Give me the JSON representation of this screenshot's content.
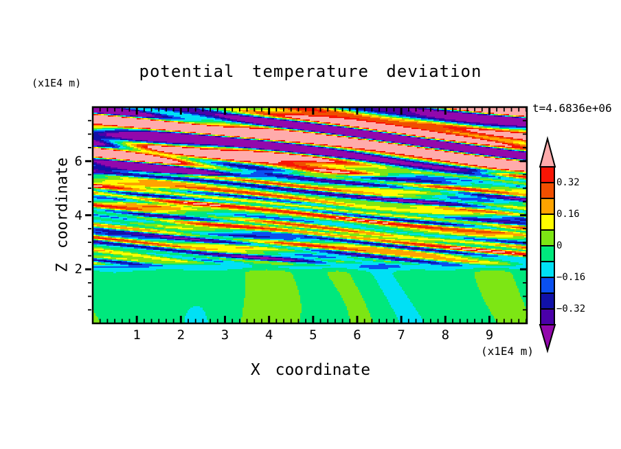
{
  "title": "potential temperature deviation",
  "timestamp_label": "t=4.6836e+06",
  "axes": {
    "x_label": "X coordinate",
    "x_unit": "(x1E4 m)",
    "z_label": "Z coordinate",
    "z_unit": "(x1E4 m)",
    "x_ticks": [
      1,
      2,
      3,
      4,
      5,
      6,
      7,
      8,
      9
    ],
    "z_ticks": [
      2,
      4,
      6
    ],
    "x_range": [
      0,
      9.85
    ],
    "z_range": [
      0,
      8
    ],
    "x_minor_per_major": 6,
    "z_minor_step": 0.5
  },
  "colorbar": {
    "labels": [
      {
        "text": "0.32",
        "boundary": 1
      },
      {
        "text": "0.16",
        "boundary": 3
      },
      {
        "text": "0",
        "boundary": 5
      },
      {
        "text": "−0.16",
        "boundary": 7
      },
      {
        "text": "−0.32",
        "boundary": 9
      }
    ],
    "segment_values_top_to_bottom": [
      "0.32 to 0.40",
      "0.24 to 0.32",
      "0.16 to 0.24",
      "0.08 to 0.16",
      "0 to 0.08",
      "-0.08 to 0",
      "-0.16 to -0.08",
      "-0.24 to -0.16",
      "-0.32 to -0.24",
      "-0.40 to -0.32"
    ],
    "above_range": "> 0.40",
    "below_range": "< -0.40"
  },
  "chart_data": {
    "type": "filled_contour",
    "title": "potential temperature deviation",
    "xlabel": "X coordinate (x1E4 m)",
    "ylabel": "Z coordinate (x1E4 m)",
    "time": "t=4.6836e+06",
    "x_range": [
      0,
      9.85
    ],
    "z_range": [
      0,
      8
    ],
    "levels": [
      -0.4,
      -0.32,
      -0.24,
      -0.16,
      -0.08,
      0,
      0.08,
      0.16,
      0.24,
      0.32,
      0.4
    ],
    "palette_low_to_high": [
      "#9208AC",
      "#4A00A8",
      "#1111A8",
      "#0A50F0",
      "#00E0F5",
      "#00E87D",
      "#7DE614",
      "#FFFC00",
      "#FFA300",
      "#F04E00",
      "#F81505",
      "#FFABAB"
    ],
    "structure_notes": "bottom layer z<2: near-zero deviation (green); middle 2<z<5.4: fine alternating filaments up to ±0.45; top z>5.4: large-amplitude saturated bands beyond ±0.40 (pink/purple)",
    "field_model": {
      "layers": [
        {
          "name": "bottom",
          "zmin": -2,
          "zmax": 2.15,
          "feather": 0.28,
          "offset": -0.03,
          "terms": [
            {
              "a": 0.042,
              "kx": 1.6,
              "kz": 0.55,
              "ph": 0.3,
              "ma": 1.6,
              "mkx": 0.45,
              "mkz": 0.25,
              "mph": 1.0
            },
            {
              "a": 0.032,
              "kx": 3.1,
              "kz": 0.5,
              "ph": 2.2,
              "ma": 1.2,
              "mkx": 0.7,
              "mkz": 0.9,
              "mph": 0.4
            }
          ]
        },
        {
          "name": "middle",
          "zmin": 2.05,
          "zmax": 5.45,
          "feather": 0.3,
          "offset": 0.0,
          "terms": [
            {
              "a": 0.17,
              "kx": 1.1,
              "kz": 10.0,
              "ph": 0.5,
              "ma": 1.8,
              "mkx": 0.9,
              "mkz": 1.4,
              "mph": 2.0
            },
            {
              "a": 0.13,
              "kx": 2.6,
              "kz": 17.0,
              "ph": 2.8,
              "ma": 1.1,
              "mkx": 0.6,
              "mkz": 2.2,
              "mph": 0.9
            },
            {
              "a": 0.1,
              "kx": 4.2,
              "kz": 26.0,
              "ph": 1.3,
              "ma": 0.8,
              "mkx": 1.3,
              "mkz": 0.8,
              "mph": 2.5
            },
            {
              "a": 0.07,
              "kx": 0.5,
              "kz": 2.0,
              "ph": 4.0,
              "ma": 0.0,
              "mkx": 0,
              "mkz": 0,
              "mph": 0
            }
          ]
        },
        {
          "name": "top",
          "zmin": 5.35,
          "zmax": 10,
          "feather": 0.35,
          "offset": 0.05,
          "terms": [
            {
              "a": 0.62,
              "kx": 0.85,
              "kz": 6.0,
              "ph": 1.2,
              "ma": 1.5,
              "mkx": 0.5,
              "mkz": 0.35,
              "mph": 0.8
            },
            {
              "a": 0.38,
              "kx": 1.7,
              "kz": 9.5,
              "ph": 4.3,
              "ma": 1.0,
              "mkx": 0.8,
              "mkz": 0.6,
              "mph": 2.3
            },
            {
              "a": 0.18,
              "kx": 3.1,
              "kz": 14.0,
              "ph": 0.7,
              "ma": 0.0,
              "mkx": 0,
              "mkz": 0,
              "mph": 0
            }
          ]
        }
      ],
      "z_streaks": [
        {
          "a": -0.11,
          "z0": 2.1,
          "sigma": 0.12
        }
      ]
    }
  }
}
